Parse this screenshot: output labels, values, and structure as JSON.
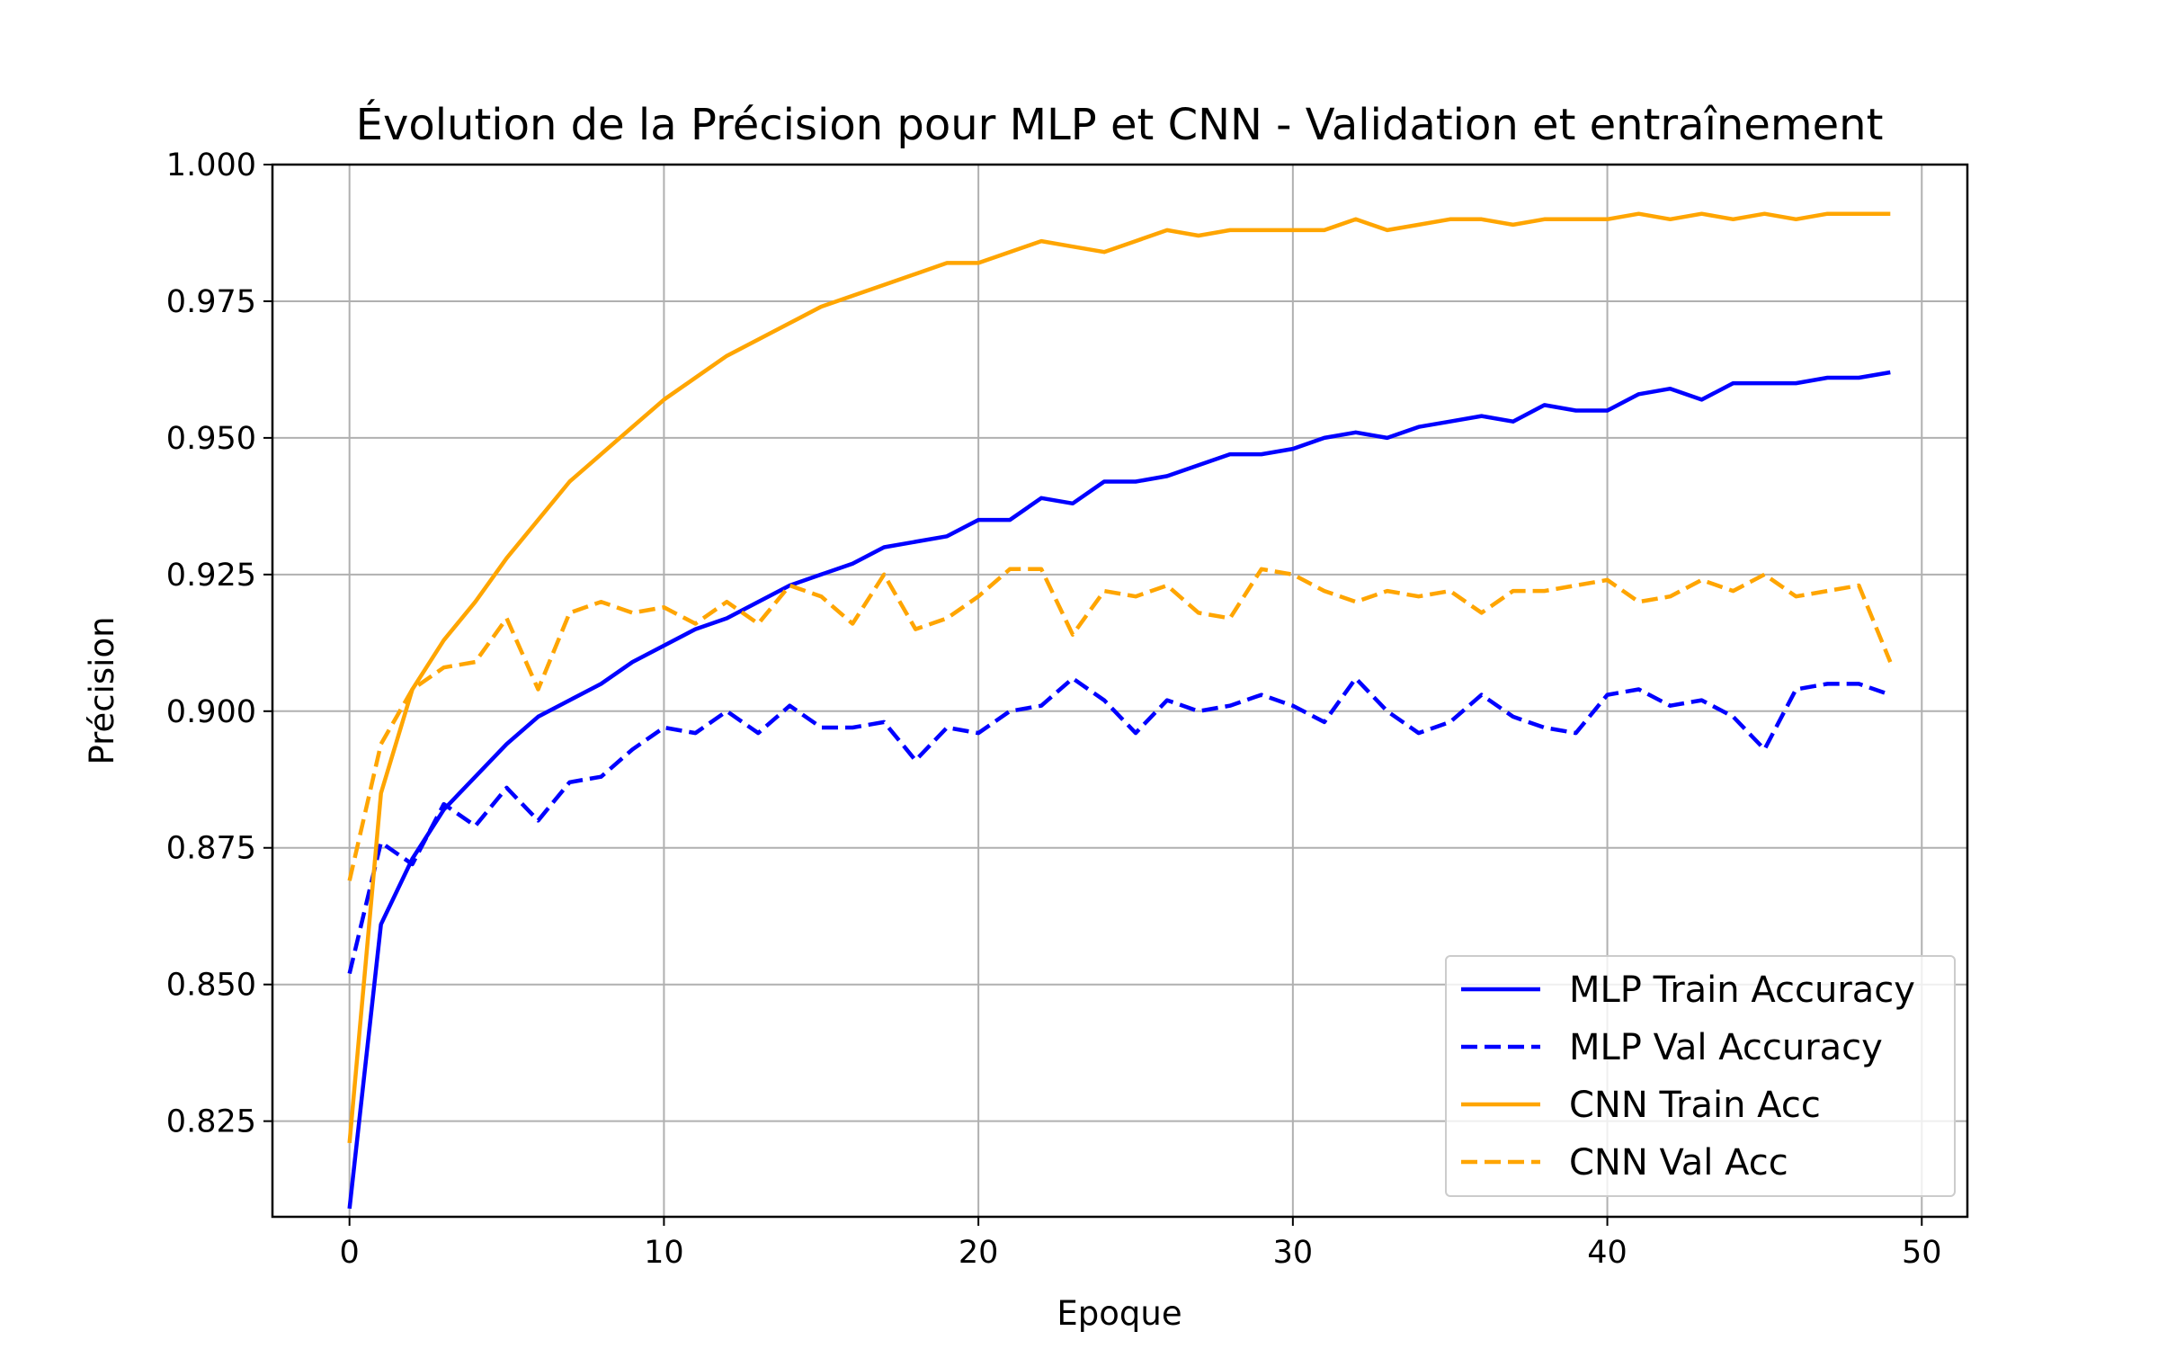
{
  "chart_data": {
    "type": "line",
    "title": "Évolution de la Précision pour MLP et CNN - Validation et entraînement",
    "xlabel": "Epoque",
    "ylabel": "Précision",
    "xlim": [
      -2.45,
      51.45
    ],
    "ylim": [
      0.8075,
      1.0
    ],
    "xticks": [
      0,
      10,
      20,
      30,
      40,
      50
    ],
    "xtick_labels": [
      "0",
      "10",
      "20",
      "30",
      "40",
      "50"
    ],
    "yticks": [
      0.825,
      0.85,
      0.875,
      0.9,
      0.925,
      0.95,
      0.975,
      1.0
    ],
    "ytick_labels": [
      "0.825",
      "0.850",
      "0.875",
      "0.900",
      "0.925",
      "0.950",
      "0.975",
      "1.000"
    ],
    "grid": true,
    "legend_position": "lower right",
    "x": [
      0,
      1,
      2,
      3,
      4,
      5,
      6,
      7,
      8,
      9,
      10,
      11,
      12,
      13,
      14,
      15,
      16,
      17,
      18,
      19,
      20,
      21,
      22,
      23,
      24,
      25,
      26,
      27,
      28,
      29,
      30,
      31,
      32,
      33,
      34,
      35,
      36,
      37,
      38,
      39,
      40,
      41,
      42,
      43,
      44,
      45,
      46,
      47,
      48,
      49
    ],
    "series": [
      {
        "name": "MLP Train Accuracy",
        "color": "#0000ff",
        "style": "solid",
        "values": [
          0.809,
          0.861,
          0.873,
          0.882,
          0.888,
          0.894,
          0.899,
          0.902,
          0.905,
          0.909,
          0.912,
          0.915,
          0.917,
          0.92,
          0.923,
          0.925,
          0.927,
          0.93,
          0.931,
          0.932,
          0.935,
          0.935,
          0.939,
          0.938,
          0.942,
          0.942,
          0.943,
          0.945,
          0.947,
          0.947,
          0.948,
          0.95,
          0.951,
          0.95,
          0.952,
          0.953,
          0.954,
          0.953,
          0.956,
          0.955,
          0.955,
          0.958,
          0.959,
          0.957,
          0.96,
          0.96,
          0.96,
          0.961,
          0.961,
          0.962
        ]
      },
      {
        "name": "MLP Val Accuracy",
        "color": "#0000ff",
        "style": "dashed",
        "values": [
          0.852,
          0.876,
          0.872,
          0.883,
          0.879,
          0.886,
          0.88,
          0.887,
          0.888,
          0.893,
          0.897,
          0.896,
          0.9,
          0.896,
          0.901,
          0.897,
          0.897,
          0.898,
          0.891,
          0.897,
          0.896,
          0.9,
          0.901,
          0.906,
          0.902,
          0.896,
          0.902,
          0.9,
          0.901,
          0.903,
          0.901,
          0.898,
          0.906,
          0.9,
          0.896,
          0.898,
          0.903,
          0.899,
          0.897,
          0.896,
          0.903,
          0.904,
          0.901,
          0.902,
          0.899,
          0.893,
          0.904,
          0.905,
          0.905,
          0.903
        ]
      },
      {
        "name": "CNN Train Acc",
        "color": "#ffa500",
        "style": "solid",
        "values": [
          0.821,
          0.885,
          0.904,
          0.913,
          0.92,
          0.928,
          0.935,
          0.942,
          0.947,
          0.952,
          0.957,
          0.961,
          0.965,
          0.968,
          0.971,
          0.974,
          0.976,
          0.978,
          0.98,
          0.982,
          0.982,
          0.984,
          0.986,
          0.985,
          0.984,
          0.986,
          0.988,
          0.987,
          0.988,
          0.988,
          0.988,
          0.988,
          0.99,
          0.988,
          0.989,
          0.99,
          0.99,
          0.989,
          0.99,
          0.99,
          0.99,
          0.991,
          0.99,
          0.991,
          0.99,
          0.991,
          0.99,
          0.991,
          0.991,
          0.991
        ]
      },
      {
        "name": "CNN Val Acc",
        "color": "#ffa500",
        "style": "dashed",
        "values": [
          0.869,
          0.894,
          0.904,
          0.908,
          0.909,
          0.917,
          0.904,
          0.918,
          0.92,
          0.918,
          0.919,
          0.916,
          0.92,
          0.916,
          0.923,
          0.921,
          0.916,
          0.925,
          0.915,
          0.917,
          0.921,
          0.926,
          0.926,
          0.914,
          0.922,
          0.921,
          0.923,
          0.918,
          0.917,
          0.926,
          0.925,
          0.922,
          0.92,
          0.922,
          0.921,
          0.922,
          0.918,
          0.922,
          0.922,
          0.923,
          0.924,
          0.92,
          0.921,
          0.924,
          0.922,
          0.925,
          0.921,
          0.922,
          0.923,
          0.909
        ]
      }
    ]
  }
}
